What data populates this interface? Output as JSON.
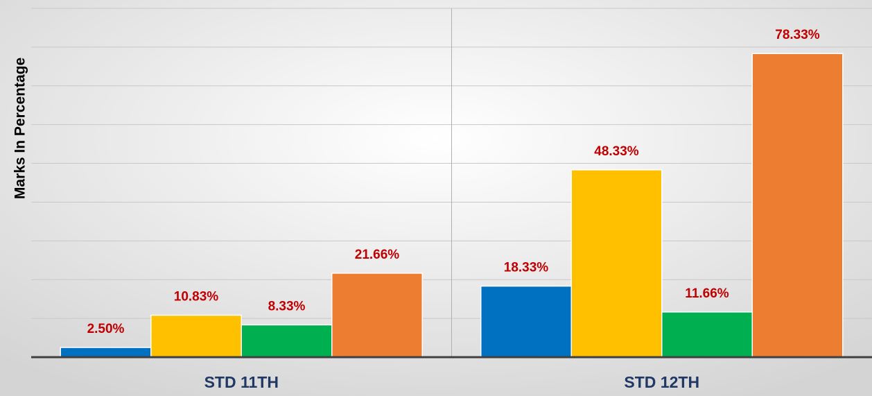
{
  "chart_data": {
    "type": "bar",
    "y_label": "Marks In Percentage",
    "categories": [
      "STD 11TH",
      "STD 12TH"
    ],
    "series": [
      {
        "color": "#0070c0",
        "values": [
          2.5,
          18.33
        ],
        "value_labels": [
          "2.50%",
          "18.33%"
        ]
      },
      {
        "color": "#ffc000",
        "values": [
          10.83,
          48.33
        ],
        "value_labels": [
          "10.83%",
          "48.33%"
        ]
      },
      {
        "color": "#00b050",
        "values": [
          8.33,
          11.66
        ],
        "value_labels": [
          "8.33%",
          "11.66%"
        ]
      },
      {
        "color": "#ed7d31",
        "values": [
          21.66,
          78.33
        ],
        "value_labels": [
          "21.66%",
          "78.33%"
        ]
      }
    ],
    "ylim": [
      0,
      90
    ],
    "yticks": [
      0,
      10,
      20,
      30,
      40,
      50,
      60,
      70,
      80,
      90
    ],
    "grid": true
  }
}
